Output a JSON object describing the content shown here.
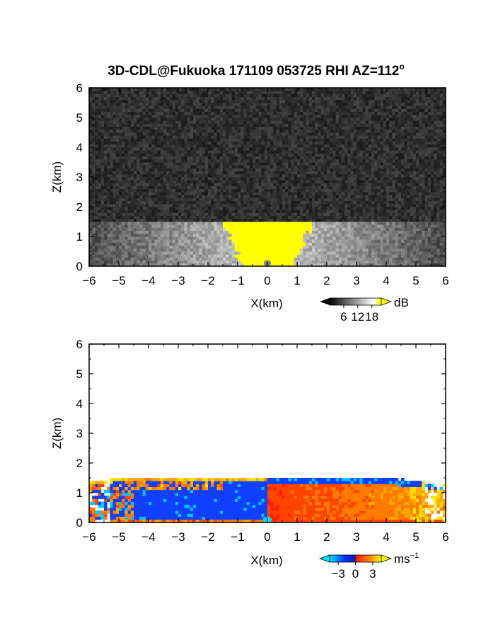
{
  "title": "3D-CDL@Fukuoka 171109 053725 RHI AZ=112",
  "title_superscript": "o",
  "chart_data": [
    {
      "type": "heatmap",
      "name_in_image": "",
      "xlabel": "X(km)",
      "ylabel": "Z(km)",
      "xlim": [
        -6,
        6
      ],
      "ylim": [
        0,
        6
      ],
      "xticks": [
        "−6",
        "−5",
        "−4",
        "−3",
        "−2",
        "−1",
        "0",
        "1",
        "2",
        "3",
        "4",
        "5",
        "6"
      ],
      "yticks": [
        "0",
        "1",
        "2",
        "3",
        "4",
        "5",
        "6"
      ],
      "colorbar": {
        "unit": "dB",
        "ticks": [
          "6",
          "12",
          "18"
        ],
        "tick_values": [
          6,
          12,
          18
        ],
        "range": [
          0,
          22
        ],
        "colors": [
          "#000000",
          "#ffffff",
          "#ffff00"
        ]
      },
      "features": {
        "background_noise_top_km": 6,
        "boundary_layer_top_km": 1.5,
        "saturated_core_x_km": [
          -1.5,
          1.5
        ],
        "saturated_color": "#ffff00"
      }
    },
    {
      "type": "heatmap",
      "xlabel": "X(km)",
      "ylabel": "Z(km)",
      "xlim": [
        -6,
        6
      ],
      "ylim": [
        0,
        6
      ],
      "xticks": [
        "−6",
        "−5",
        "−4",
        "−3",
        "−2",
        "−1",
        "0",
        "1",
        "2",
        "3",
        "4",
        "5",
        "6"
      ],
      "yticks": [
        "0",
        "1",
        "2",
        "3",
        "4",
        "5",
        "6"
      ],
      "colorbar": {
        "unit": "ms",
        "unit_superscript": "−1",
        "ticks": [
          "−3",
          "0",
          "3"
        ],
        "tick_values": [
          -3,
          0,
          3
        ],
        "range": [
          -4.5,
          4.5
        ],
        "colors": [
          "#00e0ff",
          "#0030ff",
          "#ff2000",
          "#ffff00"
        ]
      },
      "features": {
        "echo_top_km": 1.5,
        "negative_region_x_km": [
          -6,
          0
        ],
        "positive_region_x_km": [
          0,
          6
        ]
      }
    }
  ]
}
